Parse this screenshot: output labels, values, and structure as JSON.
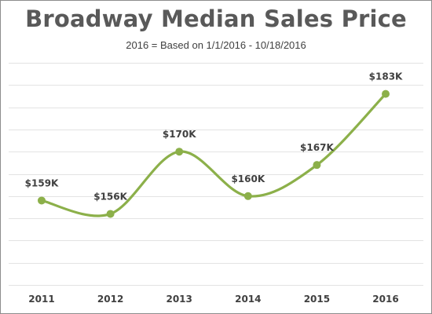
{
  "chart_data": {
    "type": "line",
    "title": "Broadway Median Sales Price",
    "subtitle": "2016 = Based on 1/1/2016 - 10/18/2016",
    "categories": [
      "2011",
      "2012",
      "2013",
      "2014",
      "2015",
      "2016"
    ],
    "series": [
      {
        "values": [
          159,
          156,
          170,
          160,
          167,
          183
        ],
        "data_labels": [
          "$159K",
          "$156K",
          "$170K",
          "$160K",
          "$167K",
          "$183K"
        ]
      }
    ],
    "ylim": [
      140,
      190
    ],
    "y_gridline_step": 5,
    "y_axis_labels_shown": false,
    "smooth": true,
    "grid": true,
    "legend": "none",
    "colors": {
      "series": "#8cb04a",
      "grid": "#e3e3e3",
      "text": "#404040",
      "title": "#595959"
    }
  }
}
